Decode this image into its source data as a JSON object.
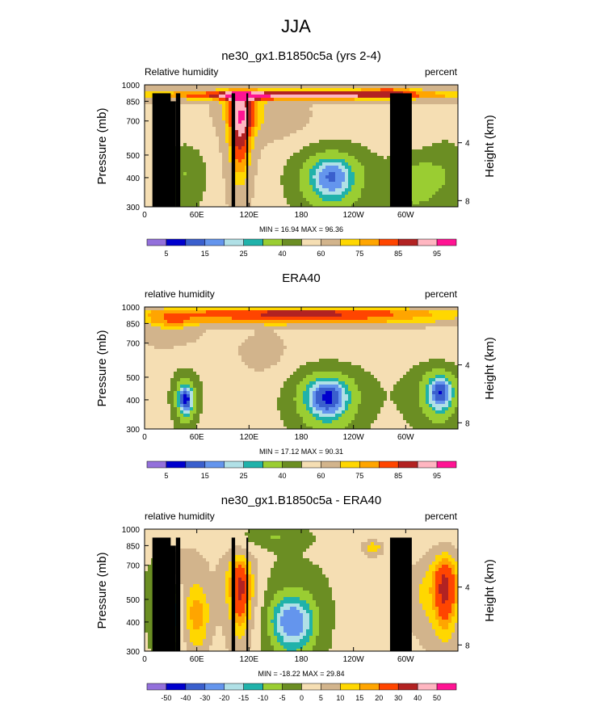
{
  "page": {
    "title": "JJA"
  },
  "chart_data": [
    {
      "type": "heatmap",
      "title": "ne30_gx1.B1850c5a (yrs 2-4)",
      "left_label": "Relative humidity",
      "right_label": "percent",
      "ylabel": "Pressure (mb)",
      "ylabel_right": "Height (km)",
      "x_ticks": [
        "0",
        "60E",
        "120E",
        "180",
        "120W",
        "60W"
      ],
      "x_tick_lon": [
        0,
        60,
        120,
        180,
        240,
        300
      ],
      "xlim": [
        0,
        360
      ],
      "y_ticks": [
        "300",
        "400",
        "500",
        "700",
        "850",
        "1000"
      ],
      "y_tick_p": [
        300,
        400,
        500,
        700,
        850,
        1000
      ],
      "ylim": [
        300,
        1000
      ],
      "right_ticks": [
        "8",
        "4"
      ],
      "right_tick_km": [
        8,
        4
      ],
      "stats": "MIN = 16.94   MAX = 96.36",
      "colorbar_labels": [
        "5",
        "15",
        "25",
        "40",
        "60",
        "75",
        "85",
        "95"
      ],
      "colorbar_label_index": [
        1,
        3,
        5,
        7,
        9,
        11,
        13,
        15
      ],
      "levels": [
        5,
        10,
        15,
        20,
        25,
        30,
        40,
        50,
        60,
        70,
        75,
        80,
        85,
        90,
        95
      ],
      "colors": [
        "#9370db",
        "#0000cd",
        "#3a5fcd",
        "#6495ed",
        "#b0e0e6",
        "#20b2aa",
        "#9acd32",
        "#6b8e23",
        "#f5deb3",
        "#d2b48c",
        "#ffd700",
        "#ffa500",
        "#ff4500",
        "#b22222",
        "#ffb6c1",
        "#ff1493"
      ],
      "base_value": 58,
      "features": [
        {
          "lon": 215,
          "p": 400,
          "value": -32,
          "dlon": 33,
          "dp": 110
        },
        {
          "lon": 215,
          "p": 400,
          "value": -12,
          "dlon": 75,
          "dp": 230
        },
        {
          "lon": 45,
          "p": 410,
          "value": -18,
          "dlon": 28,
          "dp": 160
        },
        {
          "lon": 310,
          "p": 380,
          "value": -20,
          "dlon": 28,
          "dp": 120
        },
        {
          "lon": 348,
          "p": 430,
          "value": -14,
          "dlon": 28,
          "dp": 180
        },
        {
          "lon": 110,
          "p": 570,
          "value": 28,
          "dlon": 16,
          "dp": 240
        },
        {
          "lon": 110,
          "p": 800,
          "value": 22,
          "dlon": 22,
          "dp": 140
        },
        {
          "lon": 180,
          "p": 900,
          "value": 30,
          "dlon": 190,
          "dp": 42
        },
        {
          "lon": 180,
          "p": 935,
          "value": 8,
          "dlon": 220,
          "dp": 70
        },
        {
          "lon": 280,
          "p": 950,
          "value": 12,
          "dlon": 35,
          "dp": 40
        },
        {
          "lon": 150,
          "p": 700,
          "value": 10,
          "dlon": 40,
          "dp": 150
        }
      ],
      "topography": [
        {
          "lon0": 9,
          "lon1": 30,
          "p": 920
        },
        {
          "lon0": 28,
          "lon1": 36,
          "p": 850
        },
        {
          "lon0": 36,
          "lon1": 41,
          "p": 920
        },
        {
          "lon0": 100,
          "lon1": 104,
          "p": 920
        },
        {
          "lon0": 117,
          "lon1": 119,
          "p": 920
        },
        {
          "lon0": 282,
          "lon1": 307,
          "p": 920
        }
      ]
    },
    {
      "type": "heatmap",
      "title": "ERA40",
      "left_label": "relative humidity",
      "right_label": "percent",
      "ylabel": "Pressure (mb)",
      "ylabel_right": "Height (km)",
      "x_ticks": [
        "0",
        "60E",
        "120E",
        "180",
        "120W",
        "60W"
      ],
      "x_tick_lon": [
        0,
        60,
        120,
        180,
        240,
        300
      ],
      "xlim": [
        0,
        360
      ],
      "y_ticks": [
        "300",
        "400",
        "500",
        "700",
        "850",
        "1000"
      ],
      "y_tick_p": [
        300,
        400,
        500,
        700,
        850,
        1000
      ],
      "ylim": [
        300,
        1000
      ],
      "right_ticks": [
        "8",
        "4"
      ],
      "right_tick_km": [
        8,
        4
      ],
      "stats": "MIN = 17.12   MAX = 90.31",
      "colorbar_labels": [
        "5",
        "15",
        "25",
        "40",
        "60",
        "75",
        "85",
        "95"
      ],
      "colorbar_label_index": [
        1,
        3,
        5,
        7,
        9,
        11,
        13,
        15
      ],
      "levels": [
        5,
        10,
        15,
        20,
        25,
        30,
        40,
        50,
        60,
        70,
        75,
        80,
        85,
        90,
        95
      ],
      "colors": [
        "#9370db",
        "#0000cd",
        "#3a5fcd",
        "#6495ed",
        "#b0e0e6",
        "#20b2aa",
        "#9acd32",
        "#6b8e23",
        "#f5deb3",
        "#d2b48c",
        "#ffd700",
        "#ffa500",
        "#ff4500",
        "#b22222",
        "#ffb6c1",
        "#ff1493"
      ],
      "base_value": 58,
      "features": [
        {
          "lon": 210,
          "p": 410,
          "value": -36,
          "dlon": 30,
          "dp": 100
        },
        {
          "lon": 210,
          "p": 410,
          "value": -14,
          "dlon": 72,
          "dp": 220
        },
        {
          "lon": 47,
          "p": 400,
          "value": -38,
          "dlon": 10,
          "dp": 70
        },
        {
          "lon": 47,
          "p": 420,
          "value": -14,
          "dlon": 24,
          "dp": 170
        },
        {
          "lon": 340,
          "p": 430,
          "value": -32,
          "dlon": 18,
          "dp": 90
        },
        {
          "lon": 335,
          "p": 430,
          "value": -16,
          "dlon": 40,
          "dp": 180
        },
        {
          "lon": 180,
          "p": 945,
          "value": 28,
          "dlon": 210,
          "dp": 55
        },
        {
          "lon": 180,
          "p": 870,
          "value": 18,
          "dlon": 200,
          "dp": 45
        },
        {
          "lon": 140,
          "p": 620,
          "value": 8,
          "dlon": 30,
          "dp": 140
        },
        {
          "lon": 30,
          "p": 820,
          "value": 12,
          "dlon": 30,
          "dp": 130
        }
      ],
      "topography": []
    },
    {
      "type": "heatmap",
      "title": "ne30_gx1.B1850c5a - ERA40",
      "left_label": "relative humidity",
      "right_label": "percent",
      "ylabel": "Pressure (mb)",
      "ylabel_right": "Height (km)",
      "x_ticks": [
        "0",
        "60E",
        "120E",
        "180",
        "120W",
        "60W"
      ],
      "x_tick_lon": [
        0,
        60,
        120,
        180,
        240,
        300
      ],
      "xlim": [
        0,
        360
      ],
      "y_ticks": [
        "300",
        "400",
        "500",
        "700",
        "850",
        "1000"
      ],
      "y_tick_p": [
        300,
        400,
        500,
        700,
        850,
        1000
      ],
      "ylim": [
        300,
        1000
      ],
      "right_ticks": [
        "8",
        "4"
      ],
      "right_tick_km": [
        8,
        4
      ],
      "stats": "MIN = -18.22   MAX = 29.84",
      "colorbar_labels": [
        "-50",
        "-40",
        "-30",
        "-20",
        "-15",
        "-10",
        "-5",
        "0",
        "5",
        "10",
        "15",
        "20",
        "30",
        "40",
        "50"
      ],
      "colorbar_label_index": [
        1,
        2,
        3,
        4,
        5,
        6,
        7,
        8,
        9,
        10,
        11,
        12,
        13,
        14,
        15
      ],
      "levels": [
        -50,
        -40,
        -30,
        -20,
        -15,
        -10,
        -5,
        0,
        5,
        10,
        15,
        20,
        30,
        40,
        50
      ],
      "colors": [
        "#9370db",
        "#0000cd",
        "#3a5fcd",
        "#6495ed",
        "#b0e0e6",
        "#20b2aa",
        "#9acd32",
        "#6b8e23",
        "#f5deb3",
        "#d2b48c",
        "#ffd700",
        "#ffa500",
        "#ff4500",
        "#b22222",
        "#ffb6c1",
        "#ff1493"
      ],
      "base_value": 2,
      "features": [
        {
          "lon": 170,
          "p": 400,
          "value": -22,
          "dlon": 22,
          "dp": 90
        },
        {
          "lon": 170,
          "p": 450,
          "value": -8,
          "dlon": 40,
          "dp": 260
        },
        {
          "lon": 28,
          "p": 430,
          "value": -18,
          "dlon": 12,
          "dp": 120
        },
        {
          "lon": 18,
          "p": 600,
          "value": -7,
          "dlon": 20,
          "dp": 300
        },
        {
          "lon": 110,
          "p": 560,
          "value": 20,
          "dlon": 10,
          "dp": 160
        },
        {
          "lon": 110,
          "p": 560,
          "value": 12,
          "dlon": 22,
          "dp": 260
        },
        {
          "lon": 60,
          "p": 430,
          "value": 16,
          "dlon": 15,
          "dp": 140
        },
        {
          "lon": 345,
          "p": 560,
          "value": 22,
          "dlon": 12,
          "dp": 170
        },
        {
          "lon": 345,
          "p": 560,
          "value": 10,
          "dlon": 28,
          "dp": 260
        },
        {
          "lon": 310,
          "p": 520,
          "value": 5,
          "dlon": 25,
          "dp": 180
        },
        {
          "lon": 262,
          "p": 830,
          "value": 12,
          "dlon": 12,
          "dp": 60
        },
        {
          "lon": 150,
          "p": 920,
          "value": -7,
          "dlon": 40,
          "dp": 100
        },
        {
          "lon": 40,
          "p": 700,
          "value": 8,
          "dlon": 30,
          "dp": 150
        }
      ],
      "topography": [
        {
          "lon0": 9,
          "lon1": 30,
          "p": 920
        },
        {
          "lon0": 28,
          "lon1": 36,
          "p": 850
        },
        {
          "lon0": 36,
          "lon1": 41,
          "p": 920
        },
        {
          "lon0": 100,
          "lon1": 104,
          "p": 920
        },
        {
          "lon0": 117,
          "lon1": 119,
          "p": 920
        },
        {
          "lon0": 282,
          "lon1": 307,
          "p": 920
        }
      ]
    }
  ]
}
